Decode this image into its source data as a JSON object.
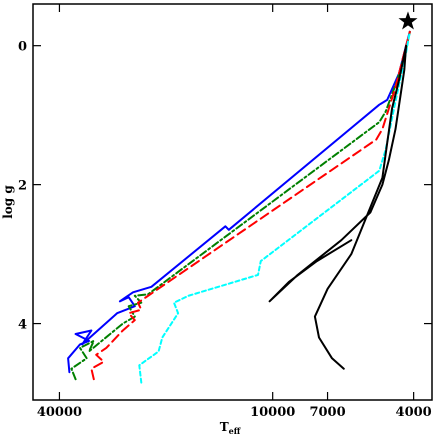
{
  "chart_data": {
    "type": "line",
    "title": "",
    "xlabel": "T",
    "xlabel_sub": "eff",
    "ylabel": "log g",
    "x_scale": "log",
    "x_reversed": true,
    "y_reversed": true,
    "xlim": [
      47500,
      3550
    ],
    "ylim": [
      -0.6,
      5.1
    ],
    "x_ticks": [
      {
        "value": 40000,
        "label": "40000"
      },
      {
        "value": 10000,
        "label": "10000"
      },
      {
        "value": 7000,
        "label": "7000"
      },
      {
        "value": 4000,
        "label": "4000"
      }
    ],
    "y_ticks": [
      {
        "value": 0,
        "label": "0"
      },
      {
        "value": 2,
        "label": "2"
      },
      {
        "value": 4,
        "label": "4"
      }
    ],
    "grid": false,
    "legend": "none",
    "series": [
      {
        "color": "#0000ff",
        "style": "solid",
        "points": [
          [
            37500,
            4.7
          ],
          [
            37800,
            4.5
          ],
          [
            35000,
            4.3
          ],
          [
            33000,
            4.25
          ],
          [
            36000,
            4.15
          ],
          [
            32500,
            4.1
          ],
          [
            34500,
            4.3
          ],
          [
            27500,
            3.85
          ],
          [
            24500,
            3.75
          ],
          [
            25500,
            3.62
          ],
          [
            27000,
            3.68
          ],
          [
            24800,
            3.55
          ],
          [
            22000,
            3.47
          ],
          [
            13600,
            2.6
          ],
          [
            13300,
            2.65
          ],
          [
            5000,
            0.85
          ],
          [
            4750,
            0.78
          ],
          [
            4400,
            0.4
          ],
          [
            4200,
            0.0
          ],
          [
            4100,
            -0.2
          ]
        ]
      },
      {
        "color": "#008000",
        "style": "dash-dot",
        "points": [
          [
            36000,
            4.8
          ],
          [
            37000,
            4.65
          ],
          [
            33500,
            4.5
          ],
          [
            35000,
            4.35
          ],
          [
            32000,
            4.25
          ],
          [
            33000,
            4.4
          ],
          [
            26500,
            4.0
          ],
          [
            24500,
            3.9
          ],
          [
            25500,
            3.75
          ],
          [
            23500,
            3.7
          ],
          [
            24500,
            3.6
          ],
          [
            22500,
            3.58
          ],
          [
            5000,
            1.1
          ],
          [
            4800,
            0.95
          ],
          [
            4450,
            0.5
          ],
          [
            4200,
            0.05
          ],
          [
            4100,
            -0.2
          ]
        ]
      },
      {
        "color": "#ff0000",
        "style": "dashed",
        "points": [
          [
            32000,
            4.8
          ],
          [
            32500,
            4.65
          ],
          [
            30000,
            4.55
          ],
          [
            31500,
            4.45
          ],
          [
            29500,
            4.35
          ],
          [
            26500,
            4.1
          ],
          [
            24500,
            3.95
          ],
          [
            25500,
            3.85
          ],
          [
            23500,
            3.8
          ],
          [
            24000,
            3.7
          ],
          [
            5100,
            1.35
          ],
          [
            4900,
            1.2
          ],
          [
            4500,
            0.6
          ],
          [
            4250,
            0.1
          ],
          [
            4100,
            -0.2
          ]
        ]
      },
      {
        "color": "#00ffff",
        "style": "dotted",
        "points": [
          [
            23500,
            4.85
          ],
          [
            23800,
            4.6
          ],
          [
            21000,
            4.4
          ],
          [
            20500,
            4.2
          ],
          [
            18500,
            3.85
          ],
          [
            19000,
            3.7
          ],
          [
            17300,
            3.6
          ],
          [
            11000,
            3.3
          ],
          [
            10800,
            3.1
          ],
          [
            5000,
            1.8
          ],
          [
            4800,
            1.5
          ],
          [
            4500,
            0.8
          ],
          [
            4200,
            0.1
          ],
          [
            4100,
            -0.2
          ]
        ]
      },
      {
        "color": "#000000",
        "style": "solid",
        "points": [
          [
            6300,
            4.65
          ],
          [
            6800,
            4.5
          ],
          [
            7400,
            4.2
          ],
          [
            7600,
            3.9
          ],
          [
            7000,
            3.5
          ],
          [
            6000,
            3.0
          ],
          [
            4900,
            1.9
          ],
          [
            4750,
            1.4
          ],
          [
            4600,
            0.9
          ],
          [
            4400,
            0.5
          ],
          [
            4200,
            0.0
          ],
          [
            4250,
            0.35
          ],
          [
            4500,
            1.2
          ],
          [
            4700,
            1.65
          ],
          [
            4900,
            2.0
          ],
          [
            5300,
            2.4
          ],
          [
            6400,
            2.8
          ],
          [
            8500,
            3.3
          ],
          [
            10200,
            3.68
          ],
          [
            9000,
            3.4
          ],
          [
            7500,
            3.1
          ],
          [
            6000,
            2.8
          ]
        ]
      }
    ],
    "markers": [
      {
        "type": "star",
        "x": 4150,
        "y": -0.35,
        "color": "#000000"
      }
    ]
  }
}
